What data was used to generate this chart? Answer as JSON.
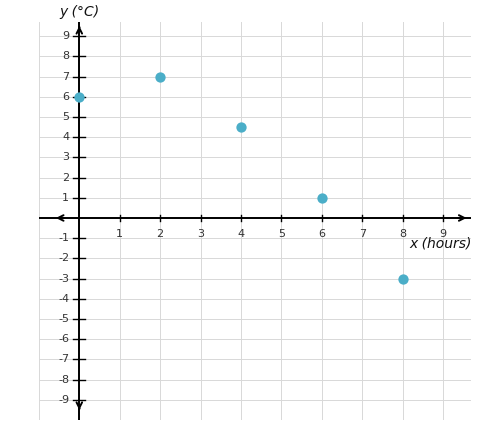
{
  "points_x": [
    0,
    2,
    4,
    6,
    8
  ],
  "points_y": [
    6,
    7,
    4.5,
    1,
    -3
  ],
  "dot_color": "#4BAEC8",
  "dot_size": 55,
  "xlim": [
    -0.7,
    9.7
  ],
  "ylim": [
    -9.7,
    9.7
  ],
  "xticks": [
    1,
    2,
    3,
    4,
    5,
    6,
    7,
    8,
    9
  ],
  "yticks": [
    -9,
    -8,
    -7,
    -6,
    -5,
    -4,
    -3,
    -2,
    -1,
    1,
    2,
    3,
    4,
    5,
    6,
    7,
    8,
    9
  ],
  "xlabel": "x (hours)",
  "ylabel": "y (°C)",
  "grid_color": "#d8d8d8",
  "axis_color": "#000000",
  "background_color": "#ffffff",
  "tick_fontsize": 8,
  "label_fontsize": 10
}
